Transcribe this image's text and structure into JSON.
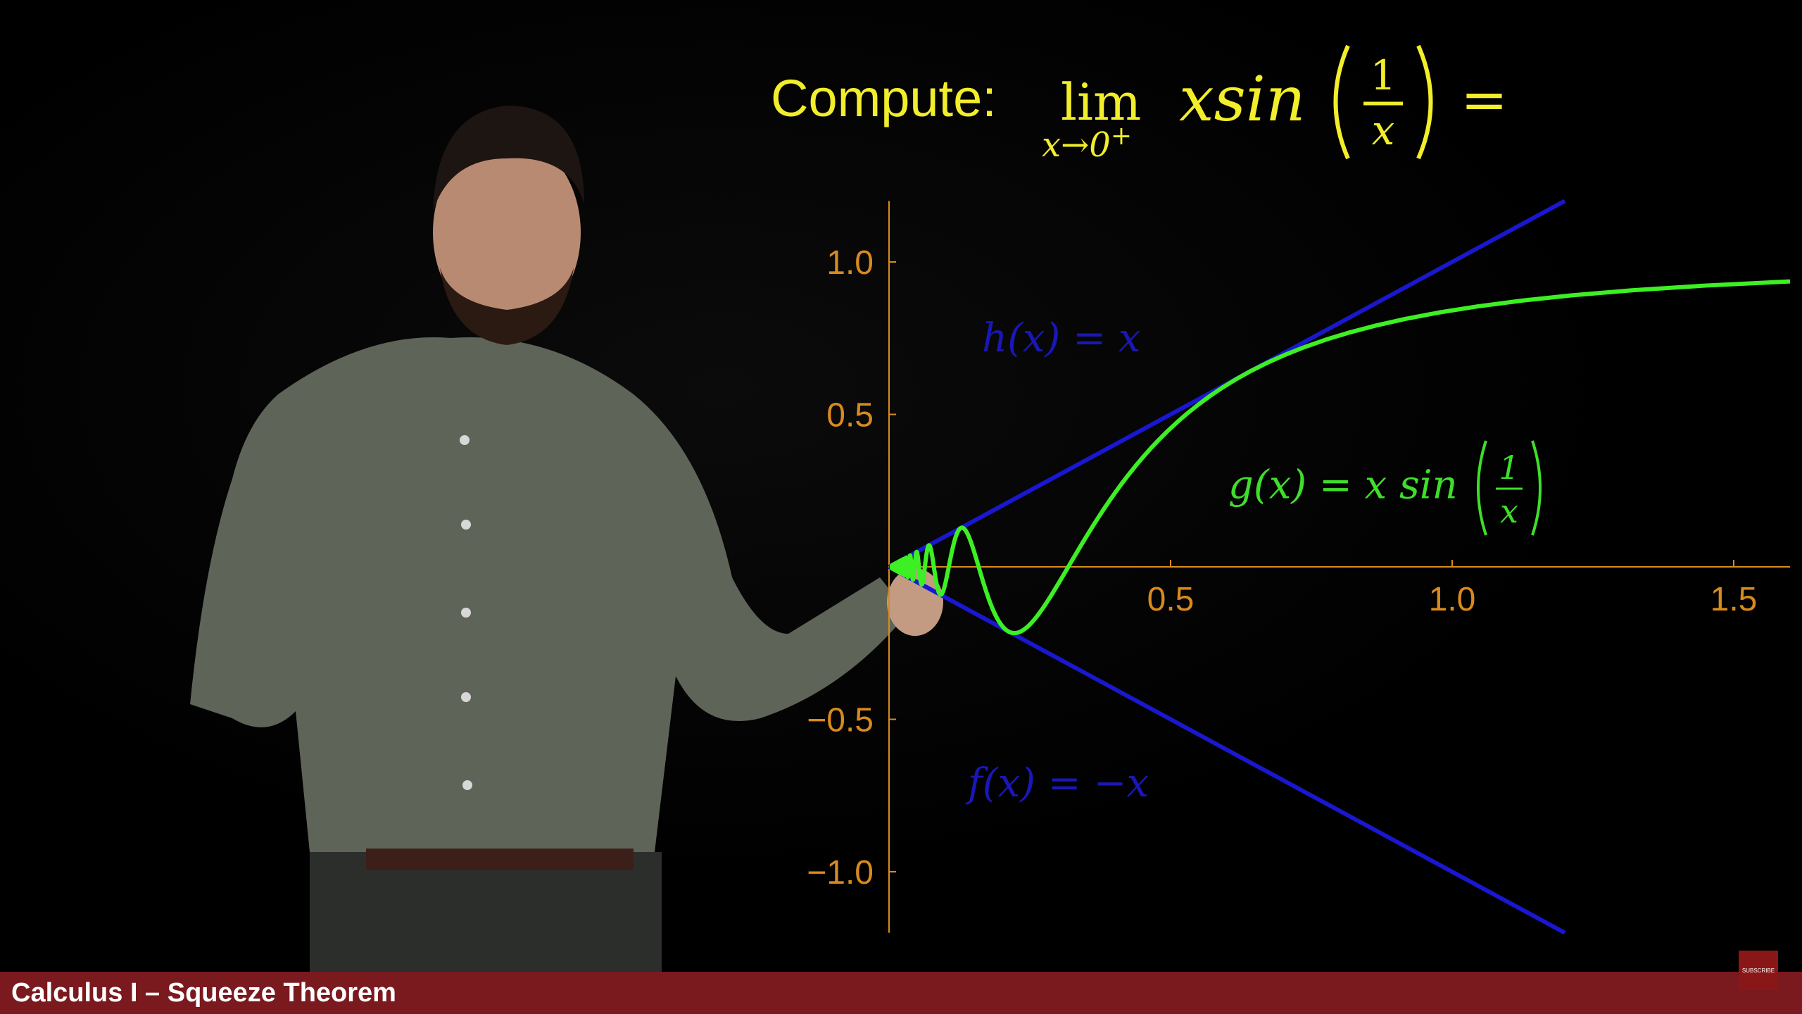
{
  "headline": {
    "compute": "Compute:",
    "lim": "lim",
    "limit_sub": "x→0",
    "limit_sup": "+",
    "func": "xsin",
    "numerator": "1",
    "denominator": "x",
    "equals": "="
  },
  "plot_labels": {
    "h": "h(x) = x",
    "f": "f(x) = −x",
    "g_prefix": "g(x) = x sin",
    "g_num": "1",
    "g_den": "x"
  },
  "video": {
    "title": "Calculus I – Squeeze Theorem",
    "subscribe": "SUBSCRIBE"
  },
  "colors": {
    "headline": "#f2ee2a",
    "axis": "#d98a1e",
    "bound_lines": "#1a17d0",
    "curve": "#3cf023",
    "title_bar": "#7a1a1f"
  },
  "chart_data": {
    "type": "line",
    "x_ticks": [
      "0.5",
      "1.0",
      "1.5"
    ],
    "x_tick_values": [
      0.5,
      1.0,
      1.5
    ],
    "y_ticks": [
      "1.0",
      "0.5",
      "−0.5",
      "−1.0"
    ],
    "y_tick_values": [
      1.0,
      0.5,
      -0.5,
      -1.0
    ],
    "xlim": [
      0,
      1.6
    ],
    "ylim": [
      -1.2,
      1.2
    ],
    "series": [
      {
        "name": "h(x) = x",
        "function": "x",
        "x_range": [
          0,
          1.2
        ]
      },
      {
        "name": "f(x) = −x",
        "function": "-x",
        "x_range": [
          0,
          1.2
        ]
      },
      {
        "name": "g(x) = x sin(1/x)",
        "function": "x*sin(1/x)",
        "x_range": [
          0.005,
          1.6
        ]
      }
    ]
  }
}
